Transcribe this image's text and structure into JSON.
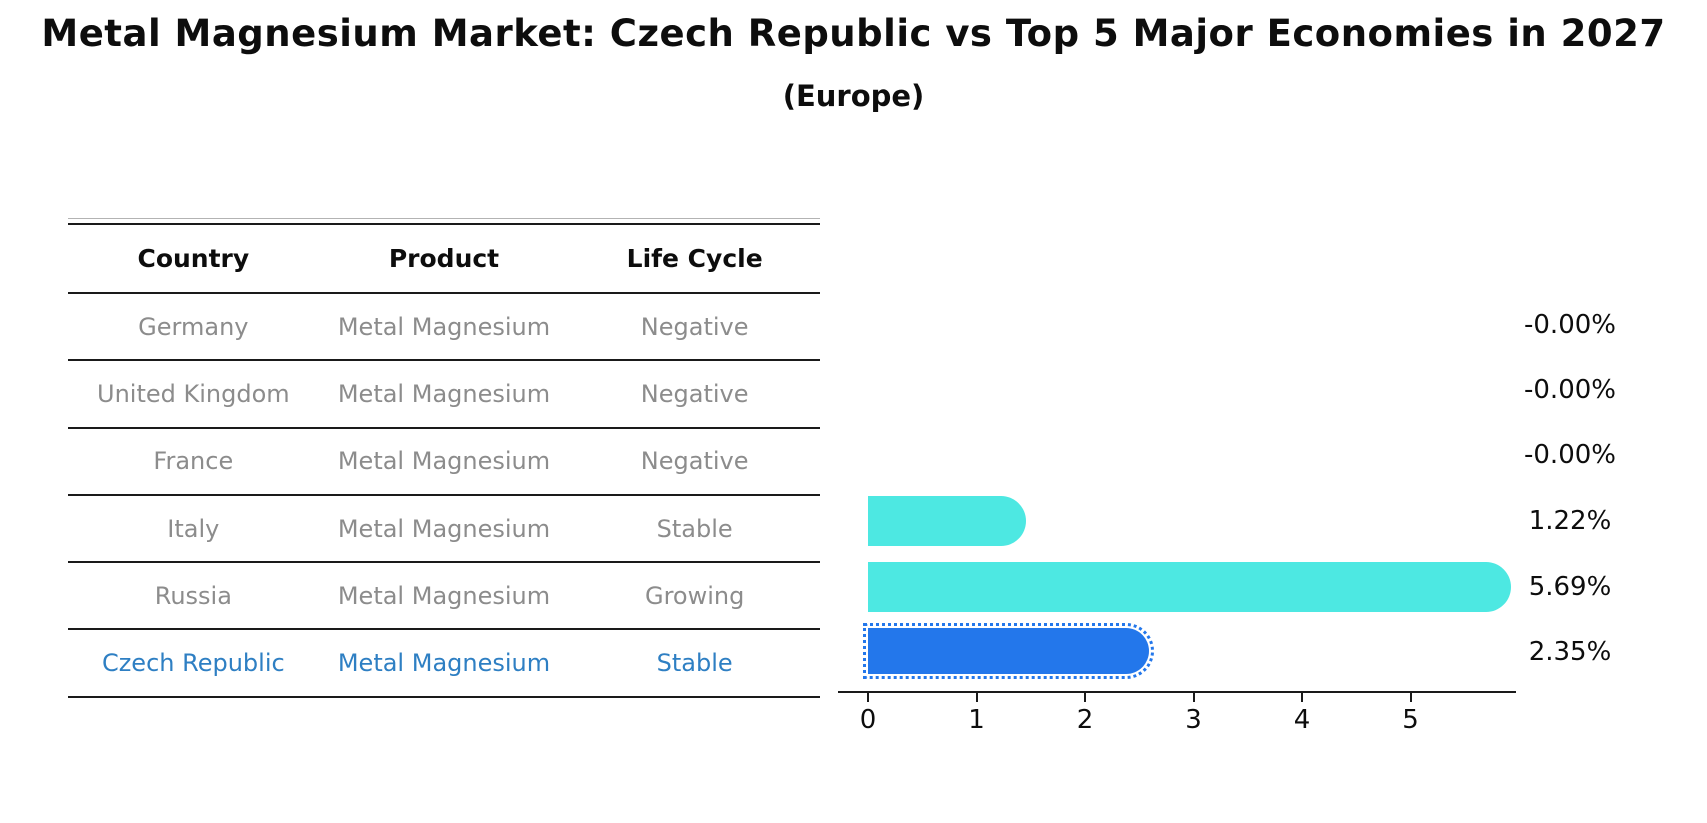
{
  "title": "Metal Magnesium Market: Czech Republic vs Top 5 Major Economies in 2027",
  "subtitle": "(Europe)",
  "table": {
    "columns": [
      "Country",
      "Product",
      "Life Cycle"
    ],
    "rows": [
      {
        "country": "Germany",
        "product": "Metal Magnesium",
        "life_cycle": "Negative",
        "highlight": false
      },
      {
        "country": "United Kingdom",
        "product": "Metal Magnesium",
        "life_cycle": "Negative",
        "highlight": false
      },
      {
        "country": "France",
        "product": "Metal Magnesium",
        "life_cycle": "Negative",
        "highlight": false
      },
      {
        "country": "Italy",
        "product": "Metal Magnesium",
        "life_cycle": "Stable",
        "highlight": false
      },
      {
        "country": "Russia",
        "product": "Metal Magnesium",
        "life_cycle": "Growing",
        "highlight": false
      },
      {
        "country": "Czech Republic",
        "product": "Metal Magnesium",
        "life_cycle": "Stable",
        "highlight": true
      }
    ]
  },
  "chart_data": {
    "type": "bar",
    "orientation": "horizontal",
    "title": "Metal Magnesium Market: Czech Republic vs Top 5 Major Economies in 2027",
    "subtitle": "(Europe)",
    "categories": [
      "Germany",
      "United Kingdom",
      "France",
      "Italy",
      "Russia",
      "Czech Republic"
    ],
    "values": [
      -0.0,
      -0.0,
      -0.0,
      1.22,
      5.69,
      2.35
    ],
    "value_labels": [
      "-0.00%",
      "-0.00%",
      "-0.00%",
      "1.22%",
      "5.69%",
      "2.35%"
    ],
    "x_ticks": [
      "0",
      "1",
      "2",
      "3",
      "4",
      "5"
    ],
    "xlim": [
      -0.3,
      6.0
    ],
    "grid": false,
    "legend": "none",
    "bar_color": "#4DE8E2",
    "highlight_index": 5,
    "highlight_bar_color": "#2377EB",
    "highlight_border_style": "dotted",
    "highlight_text_color": "#2E7FC3",
    "row_text_color": "#8C8C8C"
  }
}
